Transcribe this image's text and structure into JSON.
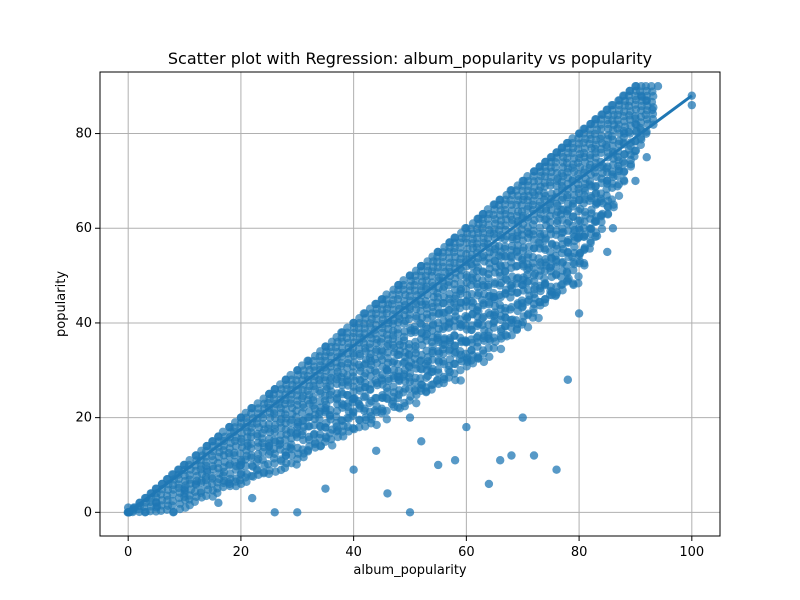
{
  "chart_data": {
    "type": "scatter",
    "title": "Scatter plot with Regression: album_popularity vs popularity",
    "xlabel": "album_popularity",
    "ylabel": "popularity",
    "xlim": [
      -5,
      105
    ],
    "ylim": [
      -5,
      93
    ],
    "xticks": [
      "0",
      "20",
      "40",
      "60",
      "80",
      "100"
    ],
    "yticks": [
      "0",
      "20",
      "40",
      "60",
      "80"
    ],
    "xtick_values": [
      0,
      20,
      40,
      60,
      80,
      100
    ],
    "ytick_values": [
      0,
      20,
      40,
      60,
      80
    ],
    "grid": true,
    "colors": {
      "points": "#1f77b4",
      "regression": "#1f77b4",
      "grid": "#b0b0b0"
    },
    "series": [
      {
        "kind": "points",
        "x": [
          0,
          0,
          1,
          2,
          3,
          4,
          5,
          5,
          6,
          7,
          8,
          9,
          10,
          10,
          12,
          14,
          15,
          16,
          18,
          20,
          20,
          22,
          25,
          25,
          26,
          28,
          28,
          30,
          30,
          32,
          35,
          35,
          38,
          40,
          40,
          42,
          44,
          45,
          46,
          48,
          48,
          50,
          50,
          52,
          53,
          55,
          55,
          57,
          58,
          60,
          60,
          62,
          62,
          63,
          65,
          65,
          66,
          68,
          70,
          70,
          72,
          72,
          73,
          74,
          75,
          75,
          76,
          77,
          78,
          78,
          80,
          80,
          80,
          81,
          82,
          83,
          83,
          84,
          85,
          85,
          86,
          86,
          87,
          88,
          88,
          89,
          90,
          90,
          91,
          92,
          92,
          93,
          94,
          100,
          100,
          40,
          46,
          50,
          55,
          58,
          64,
          66,
          68,
          76,
          72,
          30,
          35,
          22,
          18,
          14,
          10,
          8,
          5,
          3,
          26,
          20,
          16,
          12,
          44,
          52,
          60,
          70,
          78,
          85,
          90,
          88
        ],
        "y": [
          0,
          1,
          1,
          2,
          3,
          4,
          5,
          2,
          6,
          7,
          8,
          9,
          10,
          4,
          12,
          14,
          15,
          16,
          18,
          20,
          10,
          22,
          25,
          14,
          26,
          28,
          12,
          30,
          18,
          32,
          35,
          22,
          38,
          40,
          24,
          42,
          44,
          45,
          30,
          48,
          28,
          50,
          20,
          52,
          30,
          55,
          34,
          57,
          58,
          60,
          36,
          62,
          40,
          63,
          65,
          45,
          66,
          68,
          70,
          48,
          72,
          44,
          73,
          74,
          75,
          52,
          76,
          77,
          78,
          55,
          80,
          60,
          42,
          81,
          82,
          83,
          65,
          84,
          85,
          70,
          86,
          60,
          87,
          88,
          72,
          89,
          90,
          70,
          88,
          87,
          75,
          85,
          90,
          88,
          86,
          9,
          4,
          0,
          10,
          11,
          6,
          11,
          12,
          9,
          12,
          0,
          5,
          3,
          6,
          9,
          5,
          0,
          1,
          0,
          0,
          8,
          2,
          6,
          13,
          15,
          18,
          20,
          28,
          55,
          82,
          80
        ]
      },
      {
        "kind": "regression",
        "x": [
          0,
          100
        ],
        "y": [
          0,
          88
        ]
      }
    ]
  }
}
